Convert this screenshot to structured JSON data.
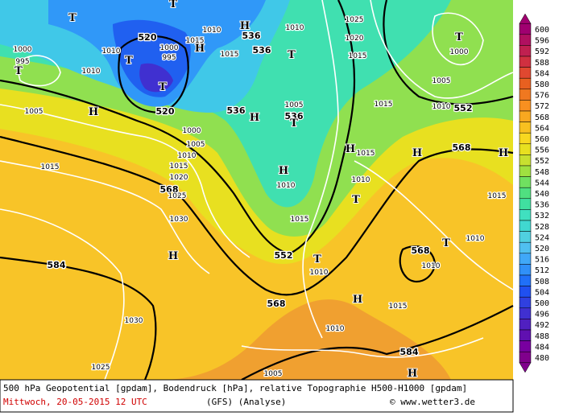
{
  "map": {
    "contour_labels": [
      "520",
      "520",
      "536",
      "536",
      "536",
      "536",
      "552",
      "552",
      "568",
      "568",
      "568",
      "568",
      "584",
      "584"
    ],
    "pressure_labels": [
      "1000",
      "995",
      "1010",
      "1015",
      "1010",
      "1015",
      "1000",
      "995",
      "1010",
      "1005",
      "1000",
      "1005",
      "1010",
      "1015",
      "1020",
      "1025",
      "1030",
      "1015",
      "1010",
      "1025",
      "1020",
      "1015",
      "1005",
      "1005",
      "1010",
      "1015",
      "1015",
      "1010",
      "1010",
      "1015",
      "1015",
      "1010",
      "1010",
      "1010",
      "1015",
      "1010",
      "1030",
      "1025",
      "1005",
      "1000"
    ],
    "centers": [
      "T",
      "T",
      "T",
      "T",
      "T",
      "H",
      "H",
      "H",
      "T",
      "T",
      "H",
      "H",
      "H",
      "H",
      "T",
      "T",
      "H",
      "T",
      "H",
      "H",
      "T",
      "H"
    ]
  },
  "colorbar": {
    "ticks": [
      600,
      596,
      592,
      588,
      584,
      580,
      576,
      572,
      568,
      564,
      560,
      556,
      552,
      548,
      544,
      540,
      536,
      532,
      528,
      524,
      520,
      516,
      512,
      508,
      504,
      500,
      496,
      492,
      488,
      484,
      480
    ],
    "colors": [
      "#a00070",
      "#b01060",
      "#c02050",
      "#d03040",
      "#e04830",
      "#e86020",
      "#f07820",
      "#f89020",
      "#f8a820",
      "#f8c020",
      "#f8d820",
      "#e8e020",
      "#c8e030",
      "#a0e040",
      "#70e060",
      "#50e080",
      "#40e0a0",
      "#40e0c0",
      "#40d8d0",
      "#50d0e0",
      "#50c0f0",
      "#40a8f8",
      "#3090f8",
      "#2070f8",
      "#2050f0",
      "#3040e0",
      "#4030d0",
      "#5020c0",
      "#6010b0",
      "#7800a0",
      "#80008c"
    ]
  },
  "footer": {
    "line1": "500 hPa Geopotential [gpdam], Bodendruck [hPa], relative Topographie H500-H1000 [gpdam]",
    "date": "Mittwoch, 20-05-2015  12 UTC",
    "model": "(GFS)  (Analyse)",
    "credit": "© www.wetter3.de"
  }
}
